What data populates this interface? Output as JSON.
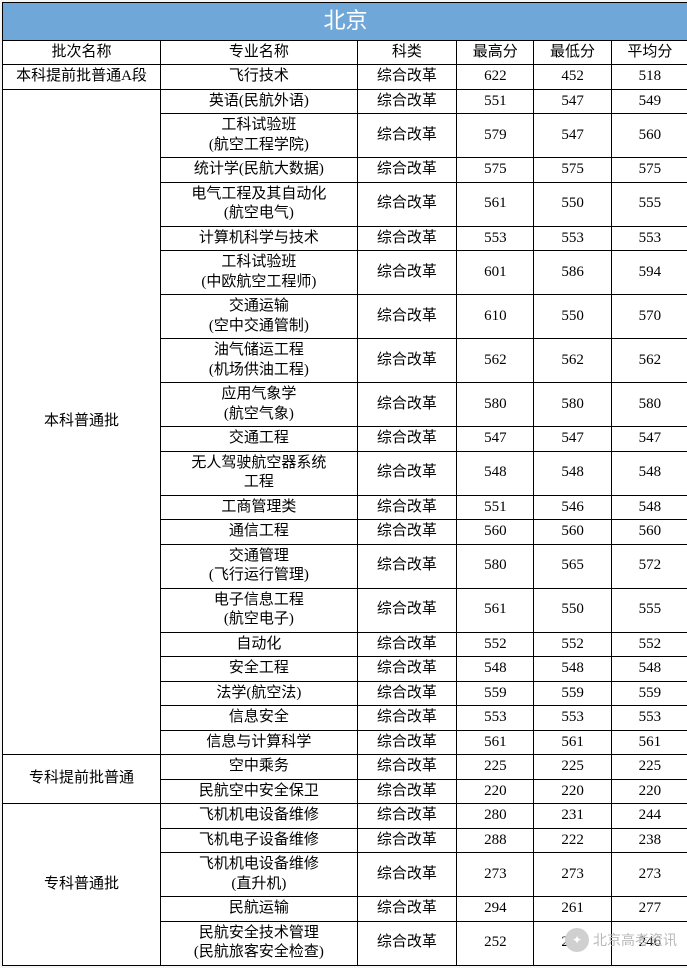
{
  "title": "北京",
  "title_bg": "#6fa8d8",
  "title_color": "#ffffff",
  "headers": [
    "批次名称",
    "专业名称",
    "科类",
    "最高分",
    "最低分",
    "平均分"
  ],
  "groups": [
    {
      "batch": "本科提前批普通A段",
      "rows": [
        {
          "major": "飞行技术",
          "subj": "综合改革",
          "hi": "622",
          "lo": "452",
          "avg": "518"
        }
      ]
    },
    {
      "batch": "本科普通批",
      "rows": [
        {
          "major": "英语(民航外语)",
          "subj": "综合改革",
          "hi": "551",
          "lo": "547",
          "avg": "549"
        },
        {
          "major": "工科试验班\n(航空工程学院)",
          "subj": "综合改革",
          "hi": "579",
          "lo": "547",
          "avg": "560"
        },
        {
          "major": "统计学(民航大数据)",
          "subj": "综合改革",
          "hi": "575",
          "lo": "575",
          "avg": "575"
        },
        {
          "major": "电气工程及其自动化\n(航空电气)",
          "subj": "综合改革",
          "hi": "561",
          "lo": "550",
          "avg": "555"
        },
        {
          "major": "计算机科学与技术",
          "subj": "综合改革",
          "hi": "553",
          "lo": "553",
          "avg": "553"
        },
        {
          "major": "工科试验班\n(中欧航空工程师)",
          "subj": "综合改革",
          "hi": "601",
          "lo": "586",
          "avg": "594"
        },
        {
          "major": "交通运输\n(空中交通管制)",
          "subj": "综合改革",
          "hi": "610",
          "lo": "550",
          "avg": "570"
        },
        {
          "major": "油气储运工程\n(机场供油工程)",
          "subj": "综合改革",
          "hi": "562",
          "lo": "562",
          "avg": "562"
        },
        {
          "major": "应用气象学\n(航空气象)",
          "subj": "综合改革",
          "hi": "580",
          "lo": "580",
          "avg": "580"
        },
        {
          "major": "交通工程",
          "subj": "综合改革",
          "hi": "547",
          "lo": "547",
          "avg": "547"
        },
        {
          "major": "无人驾驶航空器系统\n工程",
          "subj": "综合改革",
          "hi": "548",
          "lo": "548",
          "avg": "548"
        },
        {
          "major": "工商管理类",
          "subj": "综合改革",
          "hi": "551",
          "lo": "546",
          "avg": "548"
        },
        {
          "major": "通信工程",
          "subj": "综合改革",
          "hi": "560",
          "lo": "560",
          "avg": "560"
        },
        {
          "major": "交通管理\n(飞行运行管理)",
          "subj": "综合改革",
          "hi": "580",
          "lo": "565",
          "avg": "572"
        },
        {
          "major": "电子信息工程\n(航空电子)",
          "subj": "综合改革",
          "hi": "561",
          "lo": "550",
          "avg": "555"
        },
        {
          "major": "自动化",
          "subj": "综合改革",
          "hi": "552",
          "lo": "552",
          "avg": "552"
        },
        {
          "major": "安全工程",
          "subj": "综合改革",
          "hi": "548",
          "lo": "548",
          "avg": "548"
        },
        {
          "major": "法学(航空法)",
          "subj": "综合改革",
          "hi": "559",
          "lo": "559",
          "avg": "559"
        },
        {
          "major": "信息安全",
          "subj": "综合改革",
          "hi": "553",
          "lo": "553",
          "avg": "553"
        },
        {
          "major": "信息与计算科学",
          "subj": "综合改革",
          "hi": "561",
          "lo": "561",
          "avg": "561"
        }
      ]
    },
    {
      "batch": "专科提前批普通",
      "rows": [
        {
          "major": "空中乘务",
          "subj": "综合改革",
          "hi": "225",
          "lo": "225",
          "avg": "225"
        },
        {
          "major": "民航空中安全保卫",
          "subj": "综合改革",
          "hi": "220",
          "lo": "220",
          "avg": "220"
        }
      ]
    },
    {
      "batch": "专科普通批",
      "rows": [
        {
          "major": "飞机机电设备维修",
          "subj": "综合改革",
          "hi": "280",
          "lo": "231",
          "avg": "244"
        },
        {
          "major": "飞机电子设备维修",
          "subj": "综合改革",
          "hi": "288",
          "lo": "222",
          "avg": "238"
        },
        {
          "major": "飞机机电设备维修\n(直升机)",
          "subj": "综合改革",
          "hi": "273",
          "lo": "273",
          "avg": "273"
        },
        {
          "major": "民航运输",
          "subj": "综合改革",
          "hi": "294",
          "lo": "261",
          "avg": "277"
        },
        {
          "major": "民航安全技术管理\n(民航旅客安全检查)",
          "subj": "综合改革",
          "hi": "252",
          "lo": "241",
          "avg": "246"
        }
      ]
    }
  ],
  "watermark": "北京高考资讯"
}
